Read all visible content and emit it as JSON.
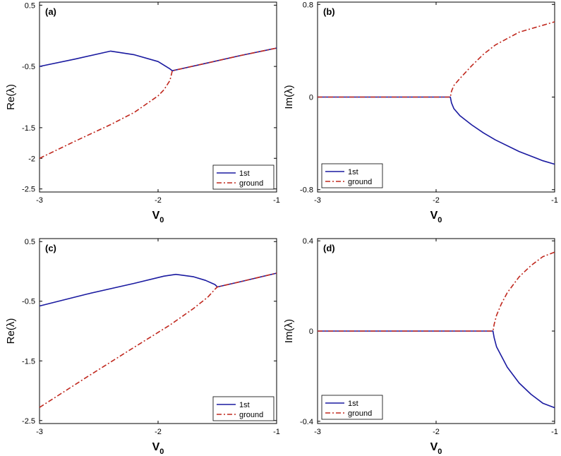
{
  "colors": {
    "first": "#1a1aa0",
    "ground": "#c0281e",
    "axis": "#000000"
  },
  "chart_data": [
    {
      "type": "line",
      "panel_label": "(a)",
      "xlabel": "V",
      "xlabel_sub": "0",
      "ylabel": "Re(λ)",
      "xlim": [
        -3,
        -1
      ],
      "ylim": [
        -2.55,
        0.55
      ],
      "xticks": [
        -3,
        -2,
        -1
      ],
      "xtick_labels": [
        "-3",
        "-2",
        "-1"
      ],
      "yticks": [
        0.5,
        -0.5,
        -1.5,
        -2,
        -2.5
      ],
      "ytick_labels": [
        "0.5",
        "-0.5",
        "-1.5",
        "-2",
        "-2.5"
      ],
      "legend_position": "bottom-right",
      "series": [
        {
          "name": "1st",
          "style": "solid",
          "x": [
            -3,
            -2.7,
            -2.4,
            -2.2,
            -2.0,
            -1.9,
            -1.88,
            -1.6,
            -1.3,
            -1.0
          ],
          "y": [
            -0.5,
            -0.38,
            -0.25,
            -0.31,
            -0.42,
            -0.54,
            -0.57,
            -0.45,
            -0.32,
            -0.2
          ]
        },
        {
          "name": "ground",
          "style": "dashdot",
          "x": [
            -3,
            -2.7,
            -2.4,
            -2.2,
            -2.0,
            -1.95,
            -1.9,
            -1.88,
            -1.6,
            -1.3,
            -1.0
          ],
          "y": [
            -2.0,
            -1.72,
            -1.45,
            -1.25,
            -0.98,
            -0.88,
            -0.73,
            -0.57,
            -0.45,
            -0.32,
            -0.2
          ]
        }
      ]
    },
    {
      "type": "line",
      "panel_label": "(b)",
      "xlabel": "V",
      "xlabel_sub": "0",
      "ylabel": "Im(λ)",
      "xlim": [
        -3,
        -1
      ],
      "ylim": [
        -0.82,
        0.82
      ],
      "xticks": [
        -3,
        -2,
        -1
      ],
      "xtick_labels": [
        "-3",
        "-2",
        "-1"
      ],
      "yticks": [
        0.8,
        0,
        -0.8
      ],
      "ytick_labels": [
        "0.8",
        "0",
        "-0.8"
      ],
      "legend_position": "bottom-left",
      "series": [
        {
          "name": "1st",
          "style": "solid",
          "x": [
            -3,
            -2.5,
            -2.0,
            -1.88,
            -1.87,
            -1.85,
            -1.8,
            -1.7,
            -1.6,
            -1.5,
            -1.3,
            -1.1,
            -1.0
          ],
          "y": [
            0,
            0,
            0,
            0,
            -0.05,
            -0.1,
            -0.16,
            -0.24,
            -0.31,
            -0.37,
            -0.47,
            -0.55,
            -0.58
          ]
        },
        {
          "name": "ground",
          "style": "dashdot",
          "x": [
            -3,
            -2.5,
            -2.0,
            -1.88,
            -1.87,
            -1.85,
            -1.8,
            -1.7,
            -1.6,
            -1.5,
            -1.3,
            -1.1,
            -1.0
          ],
          "y": [
            0,
            0,
            0,
            0,
            0.05,
            0.1,
            0.16,
            0.27,
            0.37,
            0.45,
            0.56,
            0.62,
            0.65
          ]
        }
      ]
    },
    {
      "type": "line",
      "panel_label": "(c)",
      "xlabel": "V",
      "xlabel_sub": "0",
      "ylabel": "Re(λ)",
      "xlim": [
        -3,
        -1
      ],
      "ylim": [
        -2.55,
        0.55
      ],
      "xticks": [
        -3,
        -2,
        -1
      ],
      "xtick_labels": [
        "-3",
        "-2",
        "-1"
      ],
      "yticks": [
        0.5,
        -0.5,
        -1.5,
        -2.5
      ],
      "ytick_labels": [
        "0.5",
        "-0.5",
        "-1.5",
        "-2.5"
      ],
      "legend_position": "bottom-right",
      "series": [
        {
          "name": "1st",
          "style": "solid",
          "x": [
            -3,
            -2.6,
            -2.2,
            -1.95,
            -1.85,
            -1.7,
            -1.6,
            -1.52,
            -1.5,
            -1.3,
            -1.0
          ],
          "y": [
            -0.58,
            -0.38,
            -0.2,
            -0.08,
            -0.05,
            -0.09,
            -0.15,
            -0.22,
            -0.26,
            -0.17,
            -0.03
          ]
        },
        {
          "name": "ground",
          "style": "dashdot",
          "x": [
            -3,
            -2.6,
            -2.2,
            -1.9,
            -1.7,
            -1.58,
            -1.52,
            -1.5,
            -1.3,
            -1.0
          ],
          "y": [
            -2.28,
            -1.77,
            -1.27,
            -0.9,
            -0.62,
            -0.43,
            -0.3,
            -0.26,
            -0.17,
            -0.03
          ]
        }
      ]
    },
    {
      "type": "line",
      "panel_label": "(d)",
      "xlabel": "V",
      "xlabel_sub": "0",
      "ylabel": "Im(λ)",
      "xlim": [
        -3,
        -1
      ],
      "ylim": [
        -0.41,
        0.41
      ],
      "xticks": [
        -3,
        -2,
        -1
      ],
      "xtick_labels": [
        "-3",
        "-2",
        "-1"
      ],
      "yticks": [
        0.4,
        0,
        -0.4
      ],
      "ytick_labels": [
        "0.4",
        "0",
        "-0.4"
      ],
      "legend_position": "bottom-left",
      "series": [
        {
          "name": "1st",
          "style": "solid",
          "x": [
            -3,
            -2.5,
            -2.0,
            -1.52,
            -1.51,
            -1.49,
            -1.45,
            -1.4,
            -1.3,
            -1.2,
            -1.1,
            -1.0
          ],
          "y": [
            0,
            0,
            0,
            0,
            -0.03,
            -0.07,
            -0.11,
            -0.16,
            -0.23,
            -0.28,
            -0.32,
            -0.34
          ]
        },
        {
          "name": "ground",
          "style": "dashdot",
          "x": [
            -3,
            -2.5,
            -2.0,
            -1.52,
            -1.51,
            -1.49,
            -1.45,
            -1.4,
            -1.3,
            -1.2,
            -1.1,
            -1.0
          ],
          "y": [
            0,
            0,
            0,
            0,
            0.03,
            0.07,
            0.12,
            0.17,
            0.24,
            0.29,
            0.33,
            0.35
          ]
        }
      ]
    }
  ]
}
